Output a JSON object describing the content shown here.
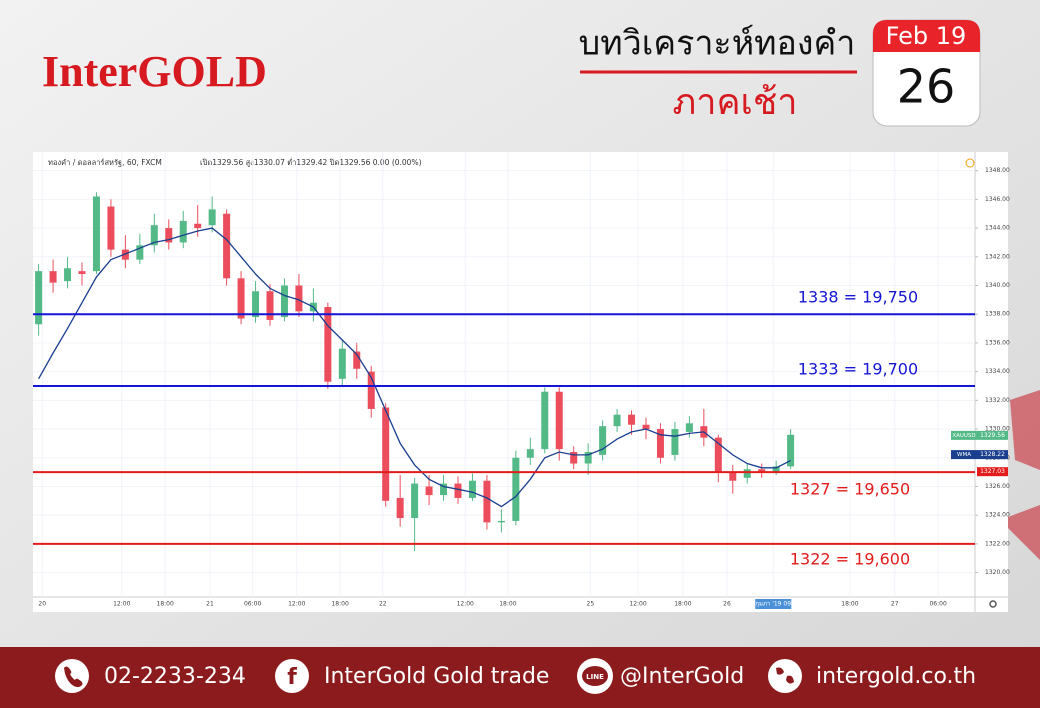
{
  "header": {
    "brand": "InterGOLD",
    "title": "บทวิเคราะห์ทองคำ",
    "subtitle": "ภาคเช้า",
    "date_month": "Feb 19",
    "date_day": "26"
  },
  "chart_data": {
    "type": "candlestick",
    "symbol": "ทองคำ / ดอลลาร์สหรัฐ, 60, FXCM",
    "ohlc_header": "เปิด1329.56 สูง1330.07 ต่ำ1329.42 ปิด1329.56 0.00 (0.00%)",
    "x": [
      0.5,
      2.5,
      4.5,
      6.5,
      8.5,
      10.5,
      12.5,
      14.5,
      16.5,
      18.5,
      20.5,
      22.5,
      24.5,
      26.5,
      28.5,
      30.5,
      32.5,
      34.5,
      36.5,
      38.5,
      40.5,
      42.5,
      44.5,
      46.5,
      48.5,
      50.5,
      52.5,
      54.5,
      56.5,
      58.5,
      60.5,
      62.5,
      64.5,
      66.5,
      68.5,
      70.5,
      72.5,
      74.5,
      76.5,
      78.5,
      80.5,
      82.5,
      84.5,
      86.5,
      88.5,
      90.5,
      92.5,
      94.5,
      96.5,
      98.5,
      100.5,
      102.5,
      104.5
    ],
    "open": [
      1337.3,
      1341,
      1340.3,
      1341,
      1341,
      1345.5,
      1342.5,
      1341.8,
      1342.8,
      1344,
      1343,
      1344.3,
      1344.2,
      1345,
      1340.5,
      1337.8,
      1339.6,
      1337.8,
      1340,
      1338.2,
      1338.5,
      1333.5,
      1335.4,
      1334,
      1331.5,
      1325.2,
      1323.8,
      1326,
      1325.4,
      1326.2,
      1325.2,
      1326.4,
      1323.5,
      1323.6,
      1328,
      1328.6,
      1332.6,
      1328.4,
      1327.6,
      1328.2,
      1330.2,
      1331,
      1330.3,
      1330,
      1328.2,
      1329.8,
      1330.2,
      1329.4,
      1327,
      1326.6,
      1327.2,
      1327,
      1327.4
    ],
    "high": [
      1341.5,
      1341.8,
      1342,
      1341.6,
      1346.5,
      1346,
      1343.5,
      1343.6,
      1345,
      1344.6,
      1345.2,
      1345.6,
      1346.2,
      1345.3,
      1341,
      1340.3,
      1340.1,
      1340.5,
      1340.8,
      1339.8,
      1338.8,
      1336.2,
      1336,
      1334.4,
      1331.8,
      1326.8,
      1326.6,
      1326.8,
      1326.8,
      1326.7,
      1326.9,
      1326.8,
      1324.4,
      1328.5,
      1329.4,
      1332.9,
      1332.9,
      1328.8,
      1329,
      1330.6,
      1331.4,
      1331.3,
      1330.8,
      1330.4,
      1330.5,
      1330.9,
      1331.4,
      1329.6,
      1327.5,
      1327.6,
      1327.6,
      1327.8,
      1330
    ],
    "low": [
      1336.5,
      1339.5,
      1339.8,
      1340,
      1340.8,
      1342,
      1341.2,
      1341.5,
      1342.3,
      1342.5,
      1342.6,
      1343.4,
      1343.7,
      1340,
      1337.3,
      1337.4,
      1337.2,
      1337.5,
      1337.8,
      1337.5,
      1332.8,
      1333,
      1333.5,
      1330.8,
      1324.6,
      1323.2,
      1321.5,
      1324.7,
      1325,
      1324.8,
      1325,
      1323,
      1322.8,
      1323.3,
      1327.5,
      1328.3,
      1327.8,
      1327.2,
      1326.8,
      1327.8,
      1329.8,
      1329.6,
      1329.3,
      1327.6,
      1327.8,
      1329.4,
      1328.8,
      1326.3,
      1325.5,
      1326.2,
      1326.6,
      1326.8,
      1327.2
    ],
    "close": [
      1341,
      1340.2,
      1341.2,
      1340.8,
      1346.2,
      1342.5,
      1341.8,
      1342.8,
      1344.2,
      1343,
      1344.5,
      1344,
      1345.3,
      1340.5,
      1337.7,
      1339.6,
      1337.6,
      1340,
      1338.2,
      1338.8,
      1333.3,
      1335.6,
      1334.2,
      1331.4,
      1325,
      1323.8,
      1326.2,
      1325.4,
      1326.2,
      1325.2,
      1326.4,
      1323.5,
      1323.6,
      1328,
      1328.6,
      1332.6,
      1328.6,
      1327.6,
      1328.4,
      1330.2,
      1331,
      1330.3,
      1330,
      1328,
      1330,
      1330.4,
      1329.4,
      1327,
      1326.4,
      1327.2,
      1327,
      1327.4,
      1329.6
    ],
    "up_color": "#53b987",
    "down_color": "#eb4d5c",
    "overlay": {
      "name": "WMA",
      "color": "#1a3f8f",
      "values": [
        1333.5,
        1335.3,
        1337,
        1338.8,
        1340.6,
        1341.8,
        1342.2,
        1342.6,
        1343,
        1343.2,
        1343.5,
        1343.8,
        1344,
        1343.2,
        1342,
        1340.8,
        1339.8,
        1339.3,
        1339,
        1338.5,
        1337.2,
        1336.2,
        1335.2,
        1333.6,
        1331.3,
        1329,
        1327.5,
        1326.5,
        1326,
        1325.8,
        1325.6,
        1325.2,
        1324.6,
        1325.3,
        1326.5,
        1328,
        1328.4,
        1328.2,
        1328.2,
        1328.6,
        1329.3,
        1329.8,
        1330,
        1329.6,
        1329.5,
        1329.7,
        1329.8,
        1329,
        1328.2,
        1327.6,
        1327.3,
        1327.3,
        1327.8
      ]
    },
    "levels": [
      {
        "value": 1338,
        "label": "1338 = 19,750",
        "color": "#1515d6"
      },
      {
        "value": 1333,
        "label": "1333 = 19,700",
        "color": "#1515d6"
      },
      {
        "value": 1327,
        "label": "1327 = 19,650",
        "color": "#e31b1b"
      },
      {
        "value": 1322,
        "label": "1322 = 19,600",
        "color": "#e31b1b"
      }
    ],
    "price_tags": [
      {
        "name": "XAUUSD",
        "value": 1329.56,
        "color": "#53b987"
      },
      {
        "name": "WMA",
        "value": 1328.22,
        "color": "#1a3f8f"
      },
      {
        "value": 1327.03,
        "color": "#e31b1b"
      }
    ],
    "xlim": [
      0,
      130
    ],
    "ylim": [
      1318.3,
      1349.3
    ],
    "xticks": [
      {
        "value": 1,
        "label": "20"
      },
      {
        "value": 12,
        "label": "12:00"
      },
      {
        "value": 18,
        "label": "18:00"
      },
      {
        "value": 24.2,
        "label": "21"
      },
      {
        "value": 30.1,
        "label": "06:00"
      },
      {
        "value": 36.2,
        "label": "12:00"
      },
      {
        "value": 42.2,
        "label": "18:00"
      },
      {
        "value": 48.1,
        "label": "22"
      },
      {
        "value": 59.5,
        "label": "12:00"
      },
      {
        "value": 65.4,
        "label": "18:00"
      },
      {
        "value": 76.8,
        "label": "25"
      },
      {
        "value": 83.4,
        "label": "12:00"
      },
      {
        "value": 89.6,
        "label": "18:00"
      },
      {
        "value": 95.7,
        "label": "26"
      },
      {
        "value": 102.1,
        "label": "26 กุมภา '19  09:00",
        "highlight": true
      },
      {
        "value": 112.7,
        "label": "18:00"
      },
      {
        "value": 118.9,
        "label": "27"
      },
      {
        "value": 124.9,
        "label": "06:00"
      }
    ],
    "yticks": [
      {
        "value": 1320,
        "label": "1320.00"
      },
      {
        "value": 1322,
        "label": "1322.00"
      },
      {
        "value": 1324,
        "label": "1324.00"
      },
      {
        "value": 1326,
        "label": "1326.00"
      },
      {
        "value": 1328,
        "label": "1328.00"
      },
      {
        "value": 1330,
        "label": "1330.00"
      },
      {
        "value": 1332,
        "label": "1332.00"
      },
      {
        "value": 1334,
        "label": "1334.00"
      },
      {
        "value": 1336,
        "label": "1336.00"
      },
      {
        "value": 1338,
        "label": "1338.00"
      },
      {
        "value": 1340,
        "label": "1340.00"
      },
      {
        "value": 1342,
        "label": "1342.00"
      },
      {
        "value": 1344,
        "label": "1344.00"
      },
      {
        "value": 1346,
        "label": "1346.00"
      },
      {
        "value": 1348,
        "label": "1348.00"
      }
    ],
    "grid": true
  },
  "footer": {
    "phone": "02-2233-234",
    "facebook": "InterGold Gold trade",
    "line_icon": "LINE",
    "line": "@InterGold",
    "website": "intergold.co.th"
  }
}
